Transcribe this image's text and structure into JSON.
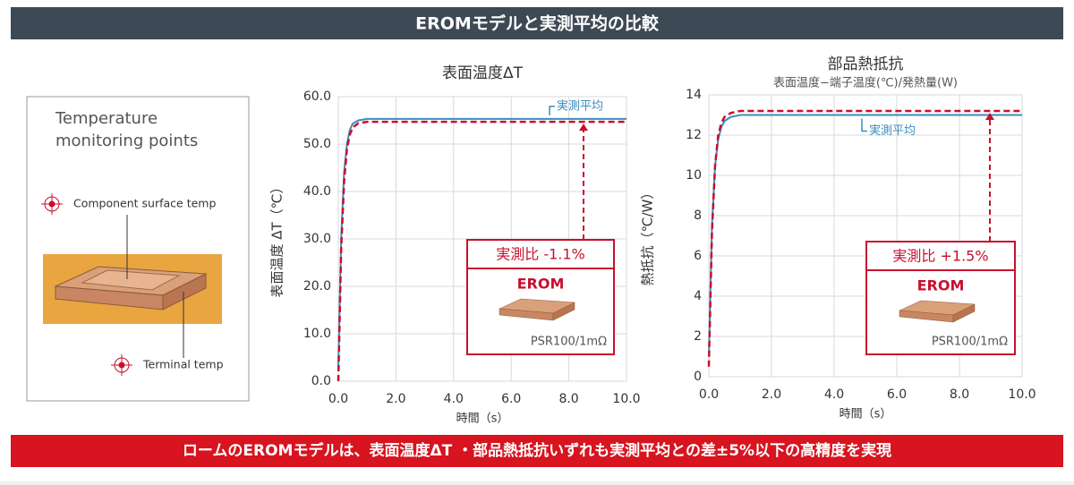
{
  "header": {
    "title": "EROMモデルと実測平均の比較"
  },
  "footer": {
    "text": "ロームのEROMモデルは、表面温度ΔT ・部品熱抵抗いずれも実測平均との差±5%以下の高精度を実現"
  },
  "panel": {
    "title_lines": [
      "Temperature",
      "monitoring points"
    ],
    "surface_label": "Component surface temp",
    "terminal_label": "Terminal temp"
  },
  "chart_data": [
    {
      "type": "line",
      "title": "表面温度ΔT",
      "xlabel": "時間（s）",
      "ylabel": "表面温度 ΔT（℃）",
      "x": [
        0,
        0.1,
        0.2,
        0.3,
        0.4,
        0.5,
        0.7,
        1.0,
        2,
        4,
        6,
        8,
        10
      ],
      "xlim": [
        0,
        10
      ],
      "xticks": [
        {
          "value": 0,
          "label": "0.0"
        },
        {
          "value": 2,
          "label": "2.0"
        },
        {
          "value": 4,
          "label": "4.0"
        },
        {
          "value": 6,
          "label": "6.0"
        },
        {
          "value": 8,
          "label": "8.0"
        },
        {
          "value": 10,
          "label": "10.0"
        }
      ],
      "ylim": [
        0,
        60
      ],
      "yticks": [
        {
          "value": 0,
          "label": "0.0"
        },
        {
          "value": 10,
          "label": "10.0"
        },
        {
          "value": 20,
          "label": "20.0"
        },
        {
          "value": 30,
          "label": "30.0"
        },
        {
          "value": 40,
          "label": "40.0"
        },
        {
          "value": 50,
          "label": "50.0"
        },
        {
          "value": 60,
          "label": "60.0"
        }
      ],
      "grid": true,
      "series": [
        {
          "name": "実測平均",
          "color": "#3b8dbd",
          "style": "solid",
          "values": [
            3,
            30,
            44,
            50,
            53,
            54.3,
            55,
            55.3,
            55.3,
            55.3,
            55.3,
            55.3,
            55.3
          ]
        },
        {
          "name": "EROM",
          "color": "#c8102e",
          "style": "dashed",
          "values": [
            0,
            28,
            42,
            49,
            52,
            53.5,
            54.4,
            54.7,
            54.7,
            54.7,
            54.7,
            54.7,
            54.7
          ]
        }
      ],
      "annotation": "実測比 -1.1%",
      "part_label": "PSR100/1mΩ"
    },
    {
      "type": "line",
      "title": "部品熱抵抗",
      "subtitle": "表面温度−端子温度(℃)/発熱量(W)",
      "xlabel": "時間（s）",
      "ylabel": "熱抵抗（℃/W）",
      "x": [
        0,
        0.1,
        0.2,
        0.3,
        0.4,
        0.5,
        0.7,
        1.0,
        2,
        4,
        6,
        8,
        10
      ],
      "xlim": [
        0,
        10
      ],
      "xticks": [
        {
          "value": 0,
          "label": "0.0"
        },
        {
          "value": 2,
          "label": "2.0"
        },
        {
          "value": 4,
          "label": "4.0"
        },
        {
          "value": 6,
          "label": "6.0"
        },
        {
          "value": 8,
          "label": "8.0"
        },
        {
          "value": 10,
          "label": "10.0"
        }
      ],
      "ylim": [
        0,
        14
      ],
      "yticks": [
        0,
        2,
        4,
        6,
        8,
        10,
        12,
        14
      ],
      "grid": true,
      "series": [
        {
          "name": "実測平均",
          "color": "#3b8dbd",
          "style": "solid",
          "values": [
            1,
            7.5,
            10.5,
            11.8,
            12.4,
            12.7,
            12.9,
            13.0,
            13.0,
            13.0,
            13.0,
            13.0,
            13.0
          ]
        },
        {
          "name": "EROM",
          "color": "#c8102e",
          "style": "dashed",
          "values": [
            0.5,
            7.2,
            10.5,
            12,
            12.6,
            12.9,
            13.1,
            13.2,
            13.2,
            13.2,
            13.2,
            13.2,
            13.2
          ]
        }
      ],
      "annotation": "実測比 +1.5%",
      "part_label": "PSR100/1mΩ"
    }
  ]
}
